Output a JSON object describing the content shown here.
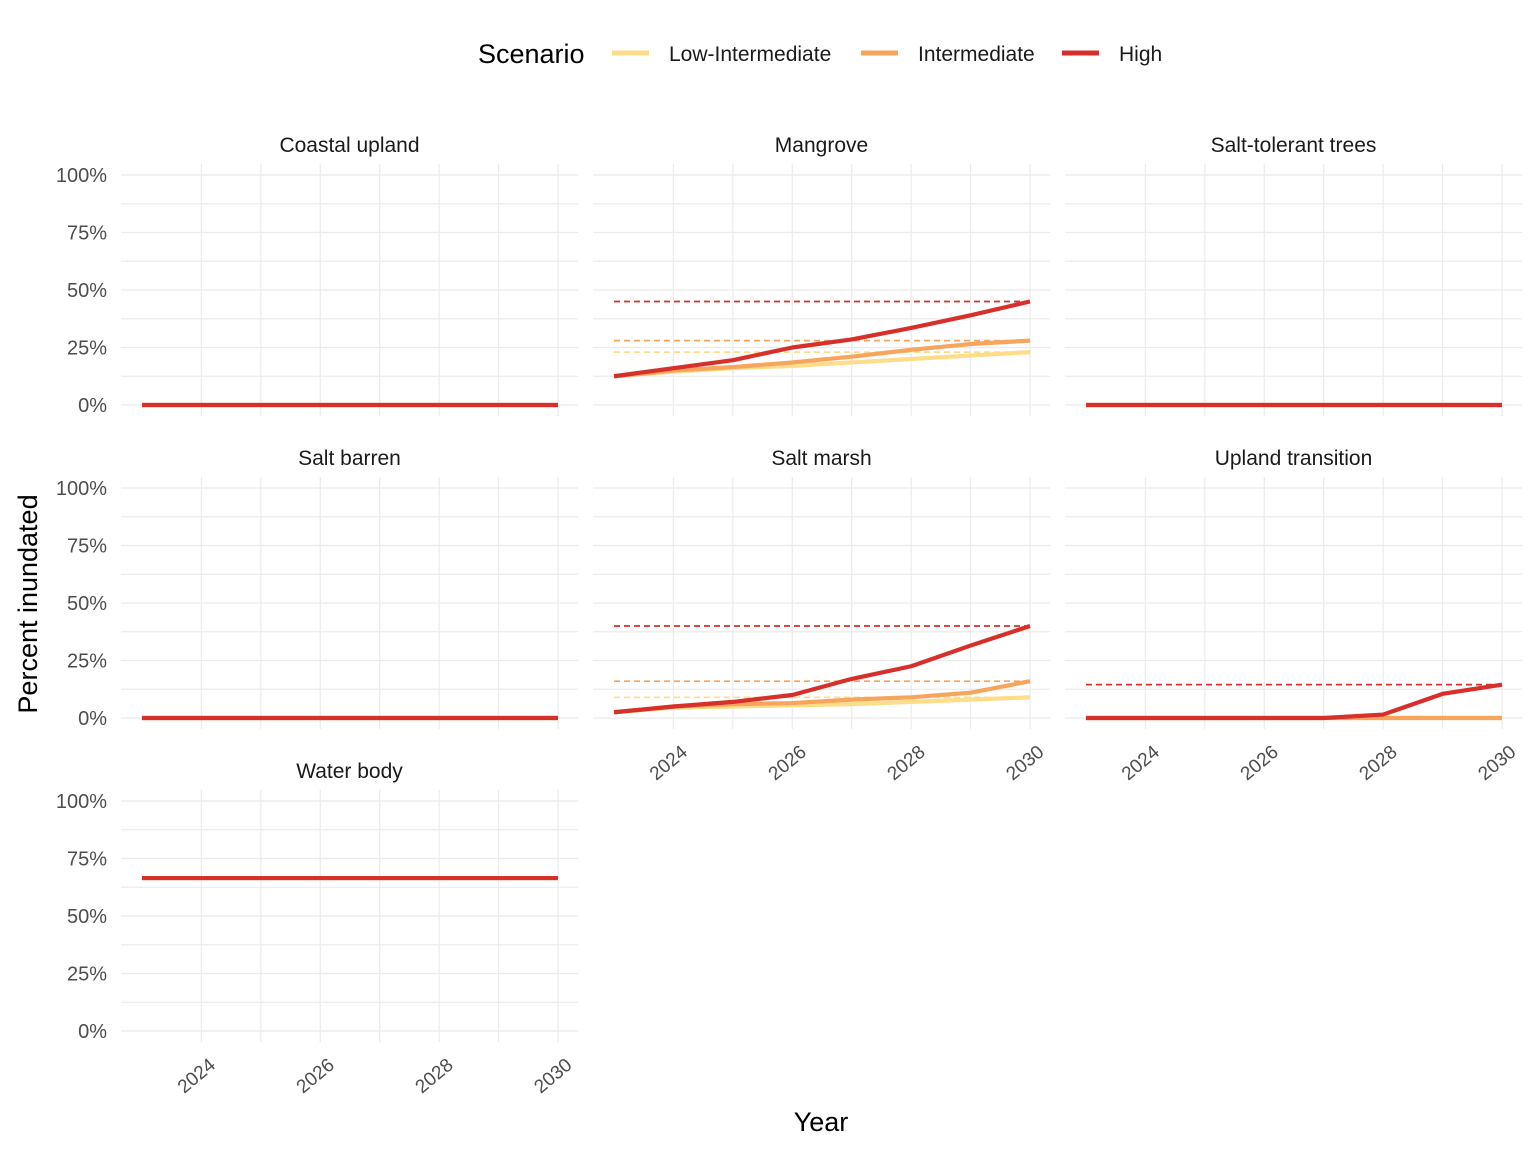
{
  "chart_data": {
    "type": "line",
    "xlabel": "Year",
    "ylabel": "Percent inundated",
    "xlim": [
      2023,
      2030
    ],
    "ylim": [
      0,
      100
    ],
    "x_ticks": [
      2024,
      2026,
      2028,
      2030
    ],
    "y_ticks": [
      0,
      25,
      50,
      75,
      100
    ],
    "y_tick_labels": [
      "0%",
      "25%",
      "50%",
      "75%",
      "100%"
    ],
    "grid": true,
    "legend": {
      "title": "Scenario",
      "position": "top",
      "entries": [
        {
          "name": "Low-Intermediate",
          "color": "#fddc8a"
        },
        {
          "name": "Intermediate",
          "color": "#f7a55c"
        },
        {
          "name": "High",
          "color": "#d7302a"
        }
      ]
    },
    "years": [
      2023,
      2024,
      2025,
      2026,
      2027,
      2028,
      2029,
      2030
    ],
    "panels": [
      {
        "title": "Coastal upland",
        "show_x_labels": false,
        "series": [
          {
            "name": "Low-Intermediate",
            "values": [
              0,
              0,
              0,
              0,
              0,
              0,
              0,
              0
            ]
          },
          {
            "name": "Intermediate",
            "values": [
              0,
              0,
              0,
              0,
              0,
              0,
              0,
              0
            ]
          },
          {
            "name": "High",
            "values": [
              0,
              0,
              0,
              0,
              0,
              0,
              0,
              0
            ]
          }
        ],
        "reference_lines": []
      },
      {
        "title": "Mangrove",
        "show_x_labels": false,
        "series": [
          {
            "name": "Low-Intermediate",
            "values": [
              12.5,
              14.5,
              16,
              17,
              18.5,
              20,
              21.5,
              23
            ]
          },
          {
            "name": "Intermediate",
            "values": [
              12.5,
              15,
              16.5,
              18.5,
              21,
              24,
              26.5,
              28
            ]
          },
          {
            "name": "High",
            "values": [
              12.5,
              16,
              19.5,
              25,
              28.5,
              33.5,
              39,
              45
            ]
          }
        ],
        "reference_lines": [
          {
            "series": "Low-Intermediate",
            "value": 23
          },
          {
            "series": "Intermediate",
            "value": 28
          },
          {
            "series": "High",
            "value": 45
          }
        ]
      },
      {
        "title": "Salt-tolerant trees",
        "show_x_labels": false,
        "series": [
          {
            "name": "Low-Intermediate",
            "values": [
              0,
              0,
              0,
              0,
              0,
              0,
              0,
              0
            ]
          },
          {
            "name": "Intermediate",
            "values": [
              0,
              0,
              0,
              0,
              0,
              0,
              0,
              0
            ]
          },
          {
            "name": "High",
            "values": [
              0,
              0,
              0,
              0,
              0,
              0,
              0,
              0
            ]
          }
        ],
        "reference_lines": []
      },
      {
        "title": "Salt barren",
        "show_x_labels": false,
        "series": [
          {
            "name": "Low-Intermediate",
            "values": [
              0,
              0,
              0,
              0,
              0,
              0,
              0,
              0
            ]
          },
          {
            "name": "Intermediate",
            "values": [
              0,
              0,
              0,
              0,
              0,
              0,
              0,
              0
            ]
          },
          {
            "name": "High",
            "values": [
              0,
              0,
              0,
              0,
              0,
              0,
              0,
              0
            ]
          }
        ],
        "reference_lines": []
      },
      {
        "title": "Salt marsh",
        "show_x_labels": true,
        "series": [
          {
            "name": "Low-Intermediate",
            "values": [
              2.5,
              4.5,
              5,
              5.5,
              6,
              7,
              8,
              9
            ]
          },
          {
            "name": "Intermediate",
            "values": [
              2.5,
              5,
              6,
              6.5,
              8,
              9,
              11,
              16
            ]
          },
          {
            "name": "High",
            "values": [
              2.5,
              5,
              7,
              10,
              17,
              22.5,
              31.5,
              40
            ]
          }
        ],
        "reference_lines": [
          {
            "series": "Low-Intermediate",
            "value": 9
          },
          {
            "series": "Intermediate",
            "value": 16
          },
          {
            "series": "High",
            "value": 40
          }
        ]
      },
      {
        "title": "Upland transition",
        "show_x_labels": true,
        "series": [
          {
            "name": "Low-Intermediate",
            "values": [
              0,
              0,
              0,
              0,
              0,
              0,
              0,
              0
            ]
          },
          {
            "name": "Intermediate",
            "values": [
              0,
              0,
              0,
              0,
              0,
              0,
              0,
              0
            ]
          },
          {
            "name": "High",
            "values": [
              0,
              0,
              0,
              0,
              0,
              1.5,
              10.5,
              14.5
            ]
          }
        ],
        "reference_lines": [
          {
            "series": "Low-Intermediate",
            "value": 0
          },
          {
            "series": "Intermediate",
            "value": 0
          },
          {
            "series": "High",
            "value": 14.5
          }
        ]
      },
      {
        "title": "Water body",
        "show_x_labels": true,
        "series": [
          {
            "name": "Low-Intermediate",
            "values": [
              66.5,
              66.5,
              66.5,
              66.5,
              66.5,
              66.5,
              66.5,
              66.5
            ]
          },
          {
            "name": "Intermediate",
            "values": [
              66.5,
              66.5,
              66.5,
              66.5,
              66.5,
              66.5,
              66.5,
              66.5
            ]
          },
          {
            "name": "High",
            "values": [
              66.5,
              66.5,
              66.5,
              66.5,
              66.5,
              66.5,
              66.5,
              66.5
            ]
          }
        ],
        "reference_lines": []
      }
    ]
  }
}
